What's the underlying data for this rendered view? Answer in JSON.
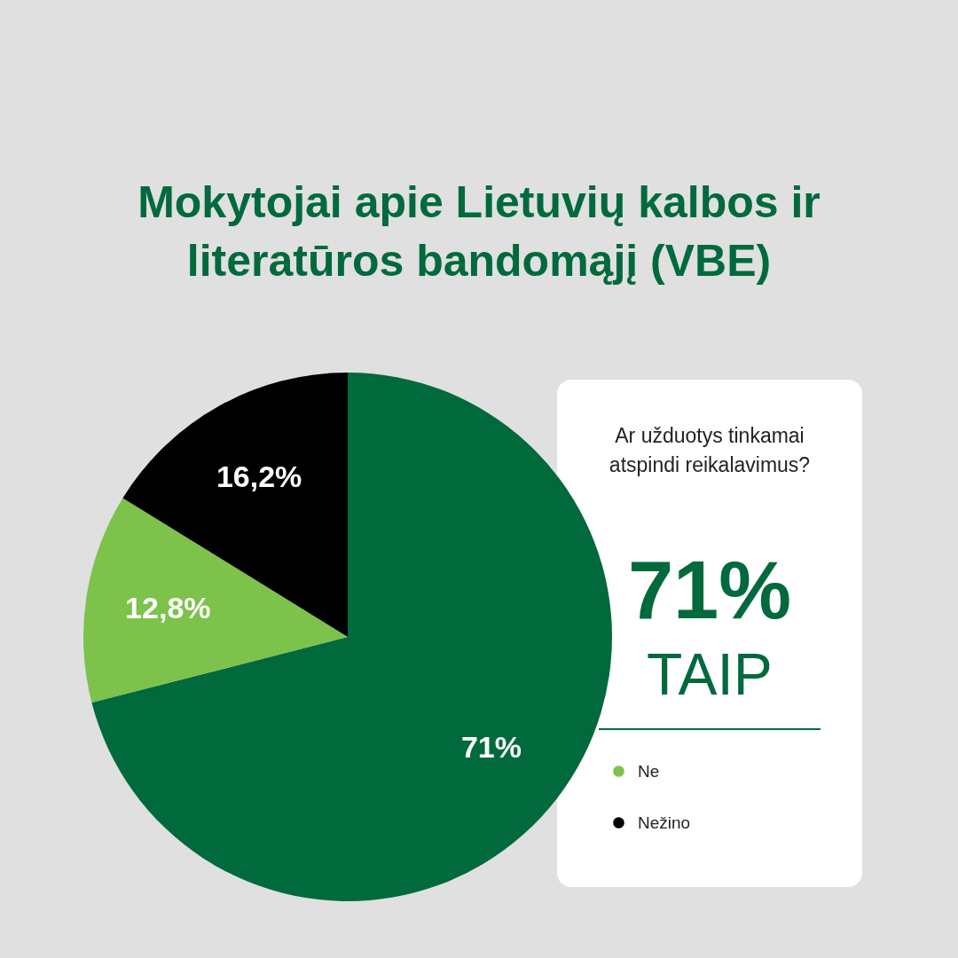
{
  "chart_data": {
    "type": "pie",
    "title": "Mokytojai apie Lietuvių kalbos ir literatūros bandomąjį (VBE)",
    "subtitle": "Ar užduotys tinkamai atspindi reikalavimus?",
    "categories": [
      "TAIP",
      "Ne",
      "Nežino"
    ],
    "values": [
      71,
      12.8,
      16.2
    ],
    "colors": [
      "#006a3d",
      "#7dc24b",
      "#000000"
    ],
    "value_labels": [
      "71%",
      "12,8%",
      "16,2%"
    ],
    "legend": "right"
  }
}
